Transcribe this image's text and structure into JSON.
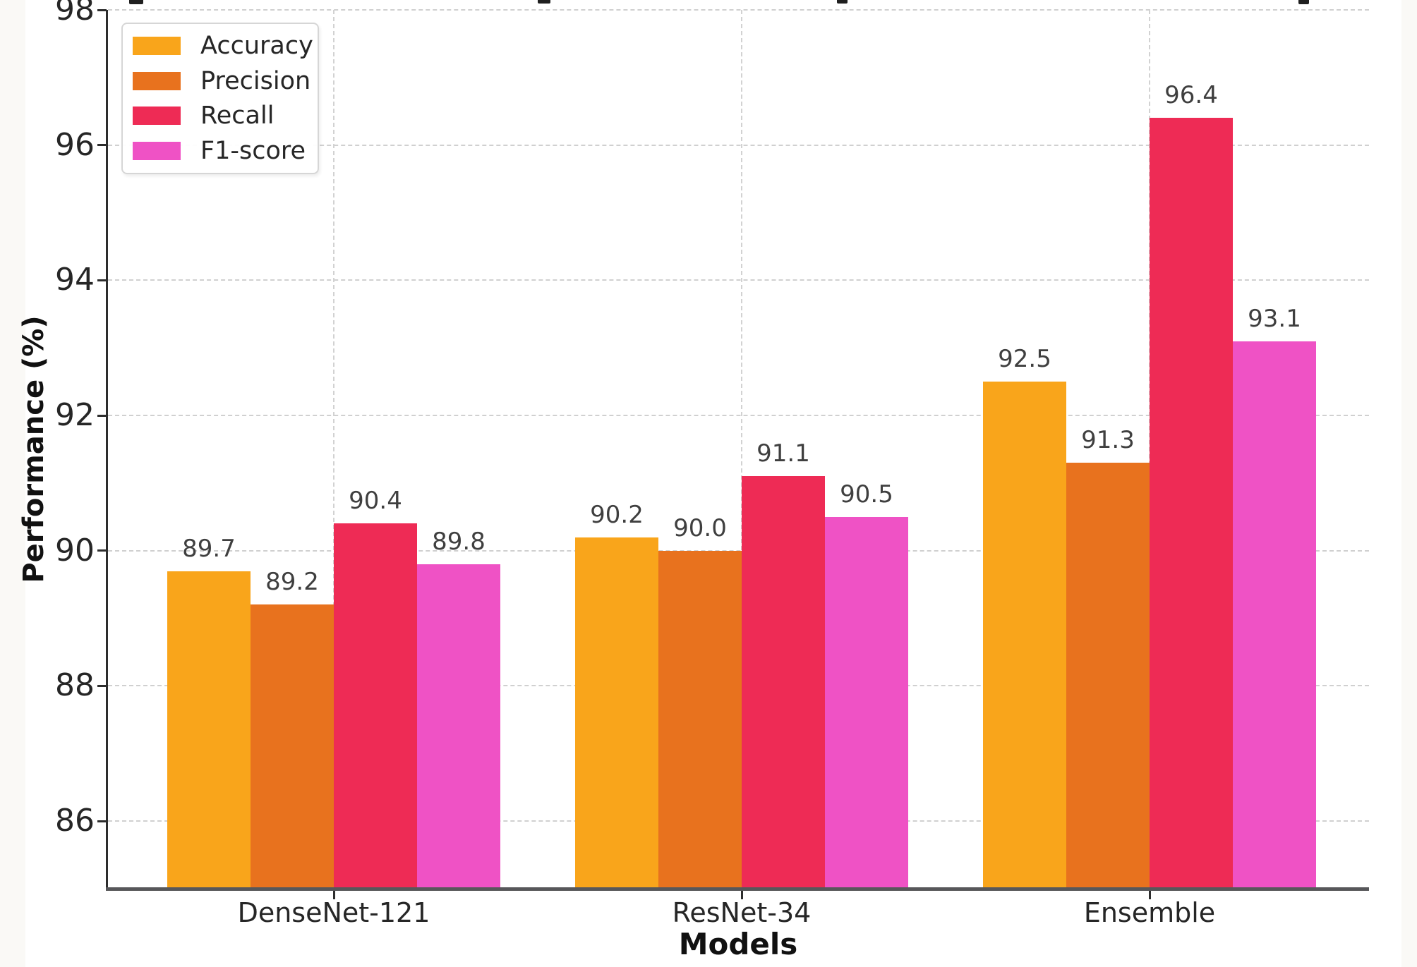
{
  "axes": {
    "ylabel": "Performance (%)",
    "xlabel": "Models"
  },
  "chart_data": {
    "type": "bar",
    "categories": [
      "DenseNet-121",
      "ResNet-34",
      "Ensemble"
    ],
    "series": [
      {
        "name": "Accuracy",
        "color": "#f9a51b",
        "values": [
          89.7,
          90.2,
          92.5
        ]
      },
      {
        "name": "Precision",
        "color": "#e8721e",
        "values": [
          89.2,
          90.0,
          91.3
        ]
      },
      {
        "name": "Recall",
        "color": "#ee2b55",
        "values": [
          90.4,
          91.1,
          96.4
        ]
      },
      {
        "name": "F1-score",
        "color": "#ef52c5",
        "values": [
          89.8,
          90.5,
          93.1
        ]
      }
    ],
    "xlabel": "Models",
    "ylabel": "Performance (%)",
    "ylim": [
      85,
      98
    ],
    "yticks": [
      86,
      88,
      90,
      92,
      94,
      96,
      98
    ],
    "grid": true,
    "grid_style": "dashed",
    "legend_position": "upper left",
    "value_labels": true,
    "title": ""
  }
}
